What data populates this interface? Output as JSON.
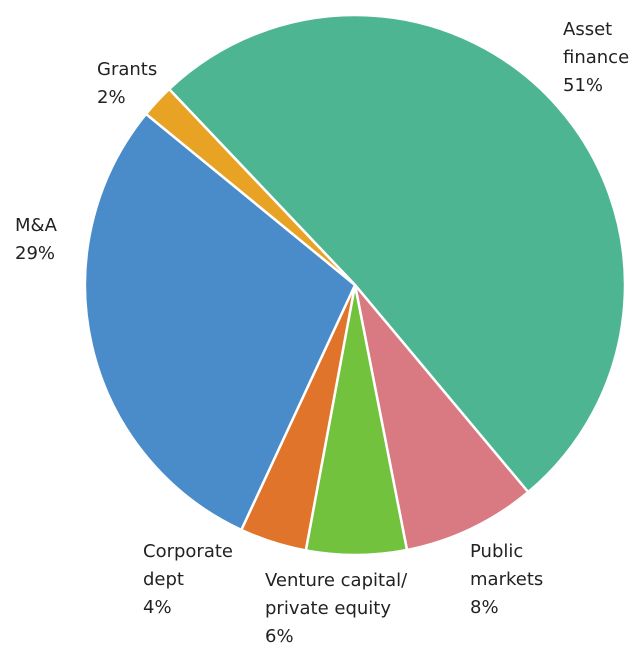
{
  "chart_data": {
    "type": "pie",
    "categories": [
      "Asset finance",
      "Public markets",
      "Venture capital/ private equity",
      "Corporate dept",
      "M&A",
      "Grants"
    ],
    "values": [
      51,
      8,
      6,
      4,
      29,
      2
    ],
    "value_labels": [
      "51%",
      "8%",
      "6%",
      "4%",
      "29%",
      "2%"
    ],
    "colors": [
      "#4db592",
      "#d97a82",
      "#72c23e",
      "#e0742a",
      "#4a8bc9",
      "#e8a224"
    ]
  }
}
